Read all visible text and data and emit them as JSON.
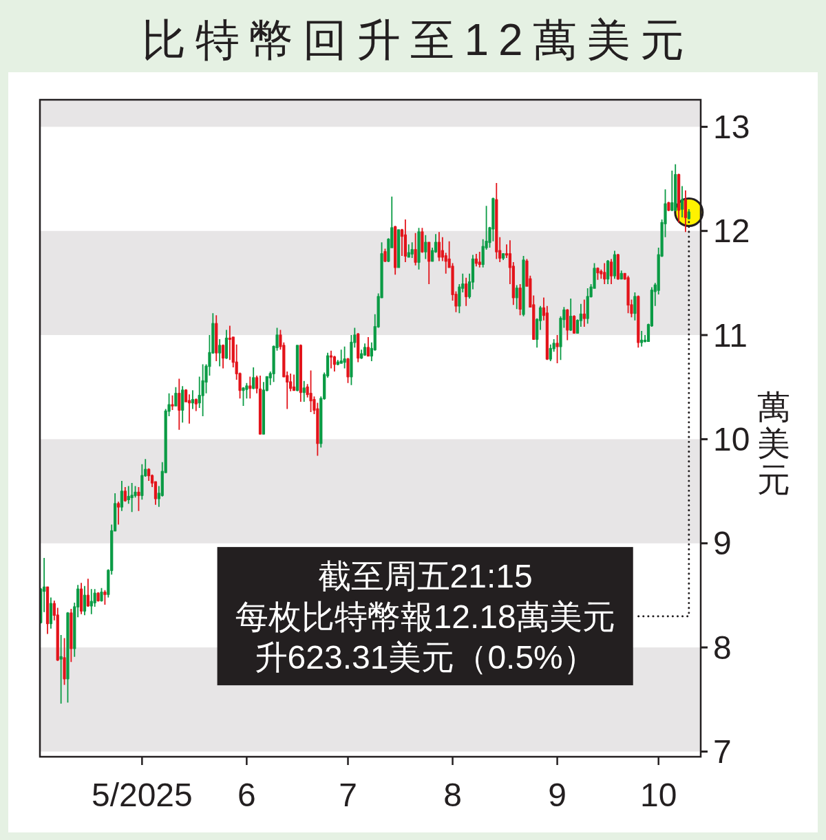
{
  "chart_data": {
    "type": "candlestick",
    "title": "比特幣回升至12萬美元",
    "ylabel": "萬美元",
    "xlim": [
      "2025-03-31T18:00",
      "2025-10-13T12:00"
    ],
    "xticks": [
      {
        "value": "2025-05-01",
        "label": "5/2025"
      },
      {
        "value": "2025-06-01",
        "label": "6"
      },
      {
        "value": "2025-07-01",
        "label": "7"
      },
      {
        "value": "2025-08-01",
        "label": "8"
      },
      {
        "value": "2025-09-01",
        "label": "9"
      },
      {
        "value": "2025-10-01",
        "label": "10"
      }
    ],
    "ylim": [
      6.95,
      13.26
    ],
    "yticks": [
      7,
      8,
      9,
      10,
      11,
      12,
      13
    ],
    "bands": [
      {
        "axis": "y",
        "from": 7,
        "to": 8,
        "color": "#e7e5e6"
      },
      {
        "axis": "y",
        "from": 9,
        "to": 10,
        "color": "#e7e5e6"
      },
      {
        "axis": "y",
        "from": 11,
        "to": 12,
        "color": "#e7e5e6"
      },
      {
        "axis": "y",
        "from": 13,
        "to": 13.26,
        "color": "#e7e5e6"
      }
    ],
    "annotations": [
      "截至周五21:15",
      {
        "text": "每枚比特幣報12.18萬美元",
        "x": "2025-10-10",
        "y": 12.18
      },
      "升623.31美元（0.5%）"
    ],
    "x": [
      "2025-04-01",
      "2025-04-02",
      "2025-04-03",
      "2025-04-04",
      "2025-04-05",
      "2025-04-06",
      "2025-04-07",
      "2025-04-08",
      "2025-04-09",
      "2025-04-10",
      "2025-04-11",
      "2025-04-12",
      "2025-04-13",
      "2025-04-14",
      "2025-04-15",
      "2025-04-16",
      "2025-04-17",
      "2025-04-18",
      "2025-04-19",
      "2025-04-20",
      "2025-04-21",
      "2025-04-22",
      "2025-04-23",
      "2025-04-24",
      "2025-04-25",
      "2025-04-26",
      "2025-04-27",
      "2025-04-28",
      "2025-04-29",
      "2025-04-30",
      "2025-05-01",
      "2025-05-02",
      "2025-05-03",
      "2025-05-04",
      "2025-05-05",
      "2025-05-06",
      "2025-05-07",
      "2025-05-08",
      "2025-05-09",
      "2025-05-10",
      "2025-05-11",
      "2025-05-12",
      "2025-05-13",
      "2025-05-14",
      "2025-05-15",
      "2025-05-16",
      "2025-05-17",
      "2025-05-18",
      "2025-05-19",
      "2025-05-20",
      "2025-05-21",
      "2025-05-22",
      "2025-05-23",
      "2025-05-24",
      "2025-05-25",
      "2025-05-26",
      "2025-05-27",
      "2025-05-28",
      "2025-05-29",
      "2025-05-30",
      "2025-05-31",
      "2025-06-01",
      "2025-06-02",
      "2025-06-03",
      "2025-06-04",
      "2025-06-05",
      "2025-06-06",
      "2025-06-07",
      "2025-06-08",
      "2025-06-09",
      "2025-06-10",
      "2025-06-11",
      "2025-06-12",
      "2025-06-13",
      "2025-06-14",
      "2025-06-15",
      "2025-06-16",
      "2025-06-17",
      "2025-06-18",
      "2025-06-19",
      "2025-06-20",
      "2025-06-21",
      "2025-06-22",
      "2025-06-23",
      "2025-06-24",
      "2025-06-25",
      "2025-06-26",
      "2025-06-27",
      "2025-06-28",
      "2025-06-29",
      "2025-06-30",
      "2025-07-01",
      "2025-07-02",
      "2025-07-03",
      "2025-07-04",
      "2025-07-05",
      "2025-07-06",
      "2025-07-07",
      "2025-07-08",
      "2025-07-09",
      "2025-07-10",
      "2025-07-11",
      "2025-07-12",
      "2025-07-13",
      "2025-07-14",
      "2025-07-15",
      "2025-07-16",
      "2025-07-17",
      "2025-07-18",
      "2025-07-19",
      "2025-07-20",
      "2025-07-21",
      "2025-07-22",
      "2025-07-23",
      "2025-07-24",
      "2025-07-25",
      "2025-07-26",
      "2025-07-27",
      "2025-07-28",
      "2025-07-29",
      "2025-07-30",
      "2025-07-31",
      "2025-08-01",
      "2025-08-02",
      "2025-08-03",
      "2025-08-04",
      "2025-08-05",
      "2025-08-06",
      "2025-08-07",
      "2025-08-08",
      "2025-08-09",
      "2025-08-10",
      "2025-08-11",
      "2025-08-12",
      "2025-08-13",
      "2025-08-14",
      "2025-08-15",
      "2025-08-16",
      "2025-08-17",
      "2025-08-18",
      "2025-08-19",
      "2025-08-20",
      "2025-08-21",
      "2025-08-22",
      "2025-08-23",
      "2025-08-24",
      "2025-08-25",
      "2025-08-26",
      "2025-08-27",
      "2025-08-28",
      "2025-08-29",
      "2025-08-30",
      "2025-08-31",
      "2025-09-01",
      "2025-09-02",
      "2025-09-03",
      "2025-09-04",
      "2025-09-05",
      "2025-09-06",
      "2025-09-07",
      "2025-09-08",
      "2025-09-09",
      "2025-09-10",
      "2025-09-11",
      "2025-09-12",
      "2025-09-13",
      "2025-09-14",
      "2025-09-15",
      "2025-09-16",
      "2025-09-17",
      "2025-09-18",
      "2025-09-19",
      "2025-09-20",
      "2025-09-21",
      "2025-09-22",
      "2025-09-23",
      "2025-09-24",
      "2025-09-25",
      "2025-09-26",
      "2025-09-27",
      "2025-09-28",
      "2025-09-29",
      "2025-09-30",
      "2025-10-01",
      "2025-10-02",
      "2025-10-03",
      "2025-10-04",
      "2025-10-05",
      "2025-10-06",
      "2025-10-07",
      "2025-10-08",
      "2025-10-09",
      "2025-10-10"
    ],
    "ohlc": [
      [
        8.24,
        8.57,
        8.23,
        8.56
      ],
      [
        8.54,
        8.86,
        8.34,
        8.58
      ],
      [
        8.58,
        8.58,
        8.13,
        8.23
      ],
      [
        8.23,
        8.48,
        8.18,
        8.42
      ],
      [
        8.42,
        8.45,
        8.26,
        8.31
      ],
      [
        8.31,
        8.38,
        7.87,
        7.88
      ],
      [
        7.89,
        8.12,
        7.46,
        7.91
      ],
      [
        7.9,
        8.09,
        7.64,
        7.7
      ],
      [
        7.7,
        8.34,
        7.47,
        8.33
      ],
      [
        8.33,
        8.37,
        7.86,
        7.99
      ],
      [
        7.99,
        8.43,
        7.91,
        8.39
      ],
      [
        8.39,
        8.6,
        8.29,
        8.56
      ],
      [
        8.56,
        8.62,
        8.32,
        8.35
      ],
      [
        8.35,
        8.59,
        8.31,
        8.5
      ],
      [
        8.5,
        8.66,
        8.39,
        8.4
      ],
      [
        8.4,
        8.56,
        8.32,
        8.44
      ],
      [
        8.43,
        8.56,
        8.39,
        8.52
      ],
      [
        8.52,
        8.53,
        8.44,
        8.45
      ],
      [
        8.45,
        8.57,
        8.44,
        8.53
      ],
      [
        8.53,
        8.55,
        8.41,
        8.51
      ],
      [
        8.51,
        8.75,
        8.48,
        8.74
      ],
      [
        8.74,
        9.18,
        8.7,
        9.12
      ],
      [
        9.12,
        9.48,
        9.12,
        9.38
      ],
      [
        9.38,
        9.4,
        9.18,
        9.35
      ],
      [
        9.35,
        9.6,
        9.31,
        9.5
      ],
      [
        9.5,
        9.54,
        9.4,
        9.41
      ],
      [
        9.42,
        9.55,
        9.38,
        9.45
      ],
      [
        9.44,
        9.58,
        9.3,
        9.46
      ],
      [
        9.46,
        9.55,
        9.44,
        9.49
      ],
      [
        9.49,
        9.54,
        9.31,
        9.46
      ],
      [
        9.46,
        9.76,
        9.42,
        9.65
      ],
      [
        9.65,
        9.81,
        9.64,
        9.71
      ],
      [
        9.71,
        9.72,
        9.6,
        9.65
      ],
      [
        9.65,
        9.66,
        9.54,
        9.58
      ],
      [
        9.59,
        9.59,
        9.37,
        9.43
      ],
      [
        9.43,
        9.55,
        9.35,
        9.48
      ],
      [
        9.46,
        9.78,
        9.45,
        9.69
      ],
      [
        9.68,
        10.29,
        9.68,
        10.27
      ],
      [
        10.27,
        10.44,
        10.22,
        10.33
      ],
      [
        10.33,
        10.42,
        10.28,
        10.32
      ],
      [
        10.32,
        10.5,
        10.32,
        10.44
      ],
      [
        10.44,
        10.58,
        10.09,
        10.28
      ],
      [
        10.28,
        10.51,
        10.16,
        10.47
      ],
      [
        10.47,
        10.48,
        10.36,
        10.36
      ],
      [
        10.37,
        10.43,
        10.15,
        10.35
      ],
      [
        10.35,
        10.47,
        10.29,
        10.38
      ],
      [
        10.38,
        10.39,
        10.27,
        10.34
      ],
      [
        10.35,
        10.6,
        10.3,
        10.42
      ],
      [
        10.42,
        10.72,
        10.22,
        10.56
      ],
      [
        10.55,
        10.72,
        10.44,
        10.7
      ],
      [
        10.7,
        11.0,
        10.61,
        10.83
      ],
      [
        10.83,
        11.21,
        10.82,
        11.11
      ],
      [
        11.11,
        11.19,
        10.75,
        10.83
      ],
      [
        10.83,
        10.96,
        10.7,
        10.9
      ],
      [
        10.9,
        10.91,
        10.68,
        10.78
      ],
      [
        10.78,
        11.05,
        10.77,
        10.97
      ],
      [
        10.97,
        11.09,
        10.76,
        10.96
      ],
      [
        10.98,
        10.98,
        10.69,
        10.74
      ],
      [
        10.74,
        10.91,
        10.57,
        10.63
      ],
      [
        10.63,
        10.64,
        10.39,
        10.47
      ],
      [
        10.47,
        10.5,
        10.32,
        10.49
      ],
      [
        10.48,
        10.54,
        10.39,
        10.51
      ],
      [
        10.51,
        10.6,
        10.39,
        10.49
      ],
      [
        10.49,
        10.69,
        10.48,
        10.59
      ],
      [
        10.59,
        10.61,
        10.44,
        10.49
      ],
      [
        10.48,
        10.61,
        10.05,
        10.05
      ],
      [
        10.05,
        10.55,
        10.05,
        10.47
      ],
      [
        10.47,
        10.6,
        10.46,
        10.6
      ],
      [
        10.59,
        10.65,
        10.52,
        10.63
      ],
      [
        10.63,
        10.9,
        10.55,
        10.89
      ],
      [
        10.88,
        11.07,
        10.85,
        11.0
      ],
      [
        11.0,
        11.05,
        10.86,
        10.89
      ],
      [
        10.9,
        10.93,
        10.6,
        10.6
      ],
      [
        10.61,
        10.65,
        10.29,
        10.55
      ],
      [
        10.55,
        10.63,
        10.46,
        10.49
      ],
      [
        10.5,
        10.62,
        10.47,
        10.47
      ],
      [
        10.47,
        10.9,
        10.46,
        10.9
      ],
      [
        10.9,
        10.91,
        10.36,
        10.45
      ],
      [
        10.45,
        10.56,
        10.36,
        10.49
      ],
      [
        10.5,
        10.53,
        10.4,
        10.43
      ],
      [
        10.44,
        10.66,
        10.26,
        10.37
      ],
      [
        10.38,
        10.41,
        10.24,
        10.28
      ],
      [
        10.29,
        10.35,
        9.84,
        9.96
      ],
      [
        9.96,
        10.41,
        9.92,
        10.39
      ],
      [
        10.39,
        10.64,
        10.38,
        10.62
      ],
      [
        10.61,
        10.83,
        10.59,
        10.8
      ],
      [
        10.8,
        10.85,
        10.68,
        10.79
      ],
      [
        10.79,
        10.8,
        10.65,
        10.72
      ],
      [
        10.72,
        10.76,
        10.71,
        10.74
      ],
      [
        10.73,
        10.86,
        10.73,
        10.75
      ],
      [
        10.74,
        10.89,
        10.68,
        10.77
      ],
      [
        10.77,
        10.78,
        10.54,
        10.6
      ],
      [
        10.6,
        11.0,
        10.52,
        10.93
      ],
      [
        10.93,
        11.07,
        10.88,
        11.0
      ],
      [
        11.01,
        11.02,
        10.74,
        10.78
      ],
      [
        10.78,
        10.86,
        10.77,
        10.82
      ],
      [
        10.81,
        10.92,
        10.8,
        10.88
      ],
      [
        10.88,
        10.98,
        10.8,
        10.8
      ],
      [
        10.8,
        10.93,
        10.75,
        10.87
      ],
      [
        10.86,
        11.2,
        10.85,
        11.08
      ],
      [
        11.08,
        11.4,
        11.07,
        11.37
      ],
      [
        11.36,
        11.89,
        11.36,
        11.78
      ],
      [
        11.8,
        11.83,
        11.7,
        11.71
      ],
      [
        11.71,
        11.93,
        11.7,
        11.92
      ],
      [
        11.84,
        12.33,
        11.84,
        12.03
      ],
      [
        12.04,
        12.05,
        11.58,
        11.65
      ],
      [
        11.65,
        12.01,
        11.65,
        12.01
      ],
      [
        12.01,
        12.02,
        11.76,
        11.95
      ],
      [
        11.96,
        12.11,
        11.7,
        11.76
      ],
      [
        11.75,
        11.87,
        11.75,
        11.79
      ],
      [
        11.78,
        11.89,
        11.74,
        11.82
      ],
      [
        11.82,
        11.98,
        11.67,
        11.7
      ],
      [
        11.7,
        12.03,
        11.63,
        11.99
      ],
      [
        11.99,
        12.03,
        11.79,
        11.8
      ],
      [
        11.8,
        11.96,
        11.73,
        11.89
      ],
      [
        11.89,
        11.89,
        11.49,
        11.71
      ],
      [
        11.71,
        11.84,
        11.71,
        11.81
      ],
      [
        11.8,
        11.97,
        11.79,
        11.89
      ],
      [
        11.89,
        11.99,
        11.71,
        11.75
      ],
      [
        11.81,
        11.94,
        11.71,
        11.75
      ],
      [
        11.76,
        11.79,
        11.59,
        11.71
      ],
      [
        11.73,
        11.9,
        11.65,
        11.65
      ],
      [
        11.66,
        11.69,
        11.33,
        11.39
      ],
      [
        11.39,
        11.42,
        11.22,
        11.28
      ],
      [
        11.28,
        11.49,
        11.21,
        11.46
      ],
      [
        11.45,
        11.59,
        11.41,
        11.49
      ],
      [
        11.49,
        11.55,
        11.28,
        11.37
      ],
      [
        11.37,
        11.59,
        11.35,
        11.51
      ],
      [
        11.51,
        11.77,
        11.44,
        11.73
      ],
      [
        11.73,
        11.78,
        11.66,
        11.69
      ],
      [
        11.7,
        11.8,
        11.65,
        11.68
      ],
      [
        11.68,
        11.92,
        11.65,
        11.85
      ],
      [
        11.84,
        12.24,
        11.82,
        11.9
      ],
      [
        11.89,
        12.04,
        11.84,
        12.03
      ],
      [
        12.02,
        12.32,
        11.9,
        12.31
      ],
      [
        12.3,
        12.46,
        11.73,
        11.8
      ],
      [
        11.81,
        11.94,
        11.7,
        11.74
      ],
      [
        11.74,
        11.78,
        11.72,
        11.78
      ],
      [
        11.78,
        11.87,
        11.74,
        11.77
      ],
      [
        11.78,
        11.91,
        11.49,
        11.65
      ],
      [
        11.66,
        11.7,
        11.29,
        11.36
      ],
      [
        11.36,
        11.48,
        11.25,
        11.45
      ],
      [
        11.45,
        11.49,
        11.19,
        11.25
      ],
      [
        11.2,
        11.76,
        11.18,
        11.72
      ],
      [
        11.71,
        11.73,
        11.47,
        11.47
      ],
      [
        11.54,
        11.57,
        11.27,
        11.27
      ],
      [
        11.29,
        11.38,
        10.96,
        10.96
      ],
      [
        10.96,
        11.16,
        10.88,
        11.15
      ],
      [
        11.14,
        11.28,
        11.05,
        11.26
      ],
      [
        11.26,
        11.36,
        11.14,
        11.19
      ],
      [
        11.21,
        11.28,
        10.76,
        10.77
      ],
      [
        10.77,
        10.91,
        10.75,
        10.87
      ],
      [
        10.87,
        10.96,
        10.84,
        10.92
      ],
      [
        10.92,
        11.0,
        10.73,
        10.89
      ],
      [
        10.89,
        11.18,
        10.76,
        11.16
      ],
      [
        11.15,
        11.27,
        11.07,
        11.24
      ],
      [
        11.24,
        11.25,
        10.95,
        11.05
      ],
      [
        11.05,
        11.35,
        11.04,
        11.18
      ],
      [
        11.18,
        11.19,
        11.02,
        11.02
      ],
      [
        11.02,
        11.15,
        11.02,
        11.14
      ],
      [
        11.14,
        11.3,
        11.08,
        11.2
      ],
      [
        11.2,
        11.34,
        11.08,
        11.16
      ],
      [
        11.16,
        11.45,
        11.11,
        11.37
      ],
      [
        11.37,
        11.49,
        11.36,
        11.46
      ],
      [
        11.45,
        11.69,
        11.45,
        11.64
      ],
      [
        11.64,
        11.65,
        11.53,
        11.6
      ],
      [
        11.61,
        11.63,
        11.54,
        11.59
      ],
      [
        11.6,
        11.69,
        11.49,
        11.54
      ],
      [
        11.54,
        11.72,
        11.49,
        11.71
      ],
      [
        11.7,
        11.73,
        11.49,
        11.57
      ],
      [
        11.57,
        11.81,
        11.54,
        11.77
      ],
      [
        11.77,
        11.78,
        11.53,
        11.54
      ],
      [
        11.54,
        11.62,
        11.54,
        11.59
      ],
      [
        11.59,
        11.59,
        11.53,
        11.54
      ],
      [
        11.55,
        11.57,
        11.21,
        11.29
      ],
      [
        11.29,
        11.34,
        11.17,
        11.21
      ],
      [
        11.21,
        11.41,
        11.14,
        11.37
      ],
      [
        11.37,
        11.38,
        10.88,
        10.93
      ],
      [
        10.93,
        11.04,
        10.89,
        10.95
      ],
      [
        10.94,
        11.0,
        10.93,
        10.95
      ],
      [
        10.94,
        11.11,
        10.94,
        11.1
      ],
      [
        11.09,
        11.46,
        11.08,
        11.43
      ],
      [
        11.42,
        11.5,
        11.28,
        11.48
      ],
      [
        11.43,
        11.84,
        11.39,
        11.77
      ],
      [
        11.76,
        12.11,
        11.75,
        12.08
      ],
      [
        12.07,
        12.4,
        11.94,
        12.26
      ],
      [
        12.27,
        12.28,
        12.19,
        12.2
      ],
      [
        12.2,
        12.58,
        12.19,
        12.27
      ],
      [
        12.2,
        12.64,
        12.19,
        12.54
      ],
      [
        12.54,
        12.55,
        12.08,
        12.2
      ],
      [
        12.21,
        12.43,
        12.13,
        12.3
      ],
      [
        12.3,
        12.39,
        11.99,
        12.13
      ],
      [
        12.12,
        12.21,
        12.11,
        12.18
      ]
    ],
    "colors": [
      "#0b9b45",
      "#0b9b45",
      "#e3141b",
      "#0b9b45",
      "#e3141b",
      "#e3141b",
      "#0b9b45",
      "#e3141b",
      "#0b9b45",
      "#e3141b",
      "#0b9b45",
      "#0b9b45",
      "#e3141b",
      "#0b9b45",
      "#e3141b",
      "#0b9b45",
      "#0b9b45",
      "#e3141b",
      "#0b9b45",
      "#e3141b",
      "#0b9b45",
      "#0b9b45",
      "#0b9b45",
      "#e3141b",
      "#0b9b45",
      "#e3141b",
      "#0b9b45",
      "#0b9b45",
      "#0b9b45",
      "#e3141b",
      "#0b9b45",
      "#0b9b45",
      "#e3141b",
      "#e3141b",
      "#e3141b",
      "#0b9b45",
      "#0b9b45",
      "#0b9b45",
      "#0b9b45",
      "#e3141b",
      "#0b9b45",
      "#e3141b",
      "#0b9b45",
      "#e3141b",
      "#e3141b",
      "#0b9b45",
      "#e3141b",
      "#0b9b45",
      "#0b9b45",
      "#0b9b45",
      "#0b9b45",
      "#0b9b45",
      "#e3141b",
      "#0b9b45",
      "#e3141b",
      "#0b9b45",
      "#e3141b",
      "#e3141b",
      "#e3141b",
      "#e3141b",
      "#0b9b45",
      "#0b9b45",
      "#e3141b",
      "#0b9b45",
      "#e3141b",
      "#e3141b",
      "#0b9b45",
      "#0b9b45",
      "#0b9b45",
      "#0b9b45",
      "#0b9b45",
      "#e3141b",
      "#e3141b",
      "#e3141b",
      "#e3141b",
      "#e3141b",
      "#0b9b45",
      "#e3141b",
      "#0b9b45",
      "#e3141b",
      "#e3141b",
      "#e3141b",
      "#e3141b",
      "#0b9b45",
      "#0b9b45",
      "#0b9b45",
      "#e3141b",
      "#e3141b",
      "#0b9b45",
      "#0b9b45",
      "#0b9b45",
      "#e3141b",
      "#0b9b45",
      "#0b9b45",
      "#e3141b",
      "#0b9b45",
      "#0b9b45",
      "#e3141b",
      "#0b9b45",
      "#0b9b45",
      "#0b9b45",
      "#0b9b45",
      "#e3141b",
      "#0b9b45",
      "#0b9b45",
      "#e3141b",
      "#0b9b45",
      "#e3141b",
      "#e3141b",
      "#0b9b45",
      "#0b9b45",
      "#e3141b",
      "#0b9b45",
      "#e3141b",
      "#0b9b45",
      "#e3141b",
      "#0b9b45",
      "#0b9b45",
      "#e3141b",
      "#e3141b",
      "#e3141b",
      "#e3141b",
      "#e3141b",
      "#e3141b",
      "#0b9b45",
      "#0b9b45",
      "#e3141b",
      "#0b9b45",
      "#0b9b45",
      "#e3141b",
      "#e3141b",
      "#0b9b45",
      "#0b9b45",
      "#0b9b45",
      "#0b9b45",
      "#e3141b",
      "#e3141b",
      "#0b9b45",
      "#e3141b",
      "#e3141b",
      "#e3141b",
      "#0b9b45",
      "#e3141b",
      "#0b9b45",
      "#e3141b",
      "#e3141b",
      "#e3141b",
      "#0b9b45",
      "#0b9b45",
      "#e3141b",
      "#e3141b",
      "#0b9b45",
      "#0b9b45",
      "#e3141b",
      "#0b9b45",
      "#0b9b45",
      "#e3141b",
      "#0b9b45",
      "#e3141b",
      "#0b9b45",
      "#0b9b45",
      "#e3141b",
      "#0b9b45",
      "#0b9b45",
      "#0b9b45",
      "#e3141b",
      "#e3141b",
      "#e3141b",
      "#0b9b45",
      "#e3141b",
      "#0b9b45",
      "#e3141b",
      "#0b9b45",
      "#e3141b",
      "#e3141b",
      "#e3141b",
      "#0b9b45",
      "#e3141b",
      "#0b9b45",
      "#0b9b45",
      "#0b9b45",
      "#0b9b45",
      "#0b9b45",
      "#0b9b45",
      "#0b9b45",
      "#0b9b45",
      "#e3141b",
      "#0b9b45",
      "#0b9b45",
      "#e3141b",
      "#0b9b45",
      "#e3141b",
      "#0b9b45"
    ]
  }
}
